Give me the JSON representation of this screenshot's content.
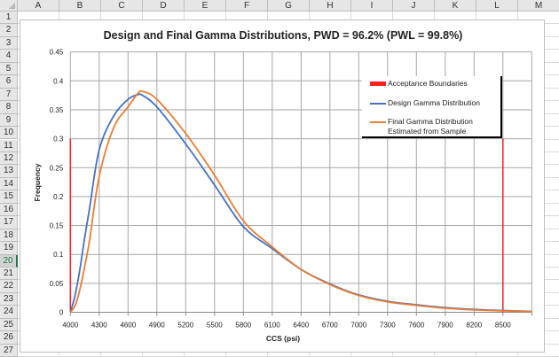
{
  "spreadsheet": {
    "columns": [
      "A",
      "B",
      "C",
      "D",
      "E",
      "F",
      "G",
      "H",
      "I",
      "J",
      "K",
      "L",
      "M"
    ],
    "rows": [
      "1",
      "2",
      "3",
      "4",
      "5",
      "6",
      "7",
      "8",
      "9",
      "10",
      "11",
      "12",
      "13",
      "14",
      "15",
      "16",
      "17",
      "18",
      "19",
      "20",
      "21",
      "22",
      "23",
      "24",
      "25",
      "26",
      "27"
    ],
    "selected_row": "20"
  },
  "legend": {
    "items": [
      {
        "label": "Acceptance Boundaries",
        "color": "#ff2020"
      },
      {
        "label": "Design Gamma Distribution",
        "color": "#4472c4"
      },
      {
        "label": "Final Gamma Distribution",
        "label2": "Estimated from Sample",
        "color": "#ed7d31"
      }
    ]
  },
  "chart_data": {
    "type": "line",
    "title": "Design and Final Gamma Distributions, PWD = 96.2%  (PWL = 99.8%)",
    "xlabel": "CCS (psi)",
    "ylabel": "Frequency",
    "xlim": [
      4000,
      8800
    ],
    "ylim": [
      0,
      0.45
    ],
    "xticks": [
      "4000",
      "4300",
      "4600",
      "4900",
      "5200",
      "5500",
      "5800",
      "6100",
      "6400",
      "6700",
      "7000",
      "7300",
      "7600",
      "7900",
      "8200",
      "8500"
    ],
    "yticks": [
      "0",
      "0.05",
      "0.1",
      "0.15",
      "0.2",
      "0.25",
      "0.3",
      "0.35",
      "0.4",
      "0.45"
    ],
    "grid": true,
    "legend_position": "top-right",
    "x": [
      4000,
      4050,
      4100,
      4150,
      4200,
      4300,
      4450,
      4600,
      4700,
      4750,
      4900,
      5200,
      5500,
      5800,
      6100,
      6400,
      6700,
      7000,
      7300,
      7600,
      7900,
      8200,
      8500,
      8800
    ],
    "series": [
      {
        "name": "Design Gamma Distribution",
        "color": "#4472c4",
        "values": [
          0,
          0.03,
          0.075,
          0.13,
          0.18,
          0.281,
          0.339,
          0.368,
          0.376,
          0.375,
          0.355,
          0.291,
          0.22,
          0.148,
          0.11,
          0.074,
          0.049,
          0.03,
          0.019,
          0.013,
          0.008,
          0.005,
          0.003,
          0.0015
        ]
      },
      {
        "name": "Final Gamma Distribution Estimated from Sample",
        "color": "#ed7d31",
        "values": [
          0,
          0.012,
          0.04,
          0.08,
          0.125,
          0.235,
          0.319,
          0.355,
          0.378,
          0.382,
          0.368,
          0.309,
          0.237,
          0.158,
          0.113,
          0.074,
          0.048,
          0.029,
          0.018,
          0.012,
          0.007,
          0.004,
          0.0025,
          0.0012
        ]
      }
    ],
    "boundaries": {
      "name": "Acceptance Boundaries",
      "color": "#ff2020",
      "x": [
        4000,
        8500
      ],
      "height": 0.3
    }
  }
}
